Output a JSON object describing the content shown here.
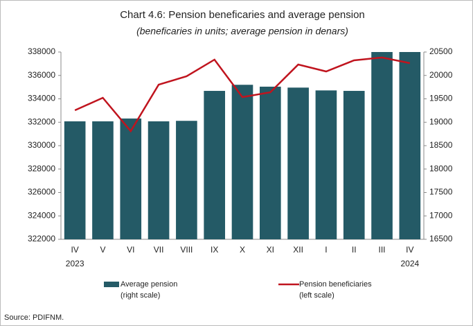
{
  "chart_data": {
    "type": "bar_line",
    "title": "Chart 4.6: Pension beneficaries and average pension",
    "subtitle": "(beneficaries in units; average pension in denars)",
    "categories": [
      "IV",
      "V",
      "VI",
      "VII",
      "VIII",
      "IX",
      "X",
      "XI",
      "XII",
      "I",
      "II",
      "III",
      "IV"
    ],
    "category_years": [
      "2023",
      null,
      null,
      null,
      null,
      null,
      null,
      null,
      null,
      null,
      null,
      null,
      "2024"
    ],
    "series": [
      {
        "name": "Average pension",
        "note": "(right scale)",
        "kind": "bar",
        "axis": "y2",
        "color": "#245a66",
        "values": [
          19020,
          19020,
          19080,
          19020,
          19030,
          19670,
          19800,
          19760,
          19740,
          19680,
          19670,
          20500,
          20500
        ]
      },
      {
        "name": "Pension beneficiaries",
        "note": "(left scale)",
        "kind": "line",
        "axis": "y",
        "color": "#c0141e",
        "values": [
          333020,
          334090,
          331240,
          335210,
          335930,
          337350,
          334150,
          334560,
          336930,
          336340,
          337290,
          337530,
          337050
        ]
      }
    ],
    "ylim": [
      322000,
      338000
    ],
    "yticks": [
      322000,
      324000,
      326000,
      328000,
      330000,
      332000,
      334000,
      336000,
      338000
    ],
    "y2lim": [
      16500,
      20500
    ],
    "y2ticks": [
      16500,
      17000,
      17500,
      18000,
      18500,
      19000,
      19500,
      20000,
      20500
    ],
    "source": "Source: PDIFNM."
  }
}
